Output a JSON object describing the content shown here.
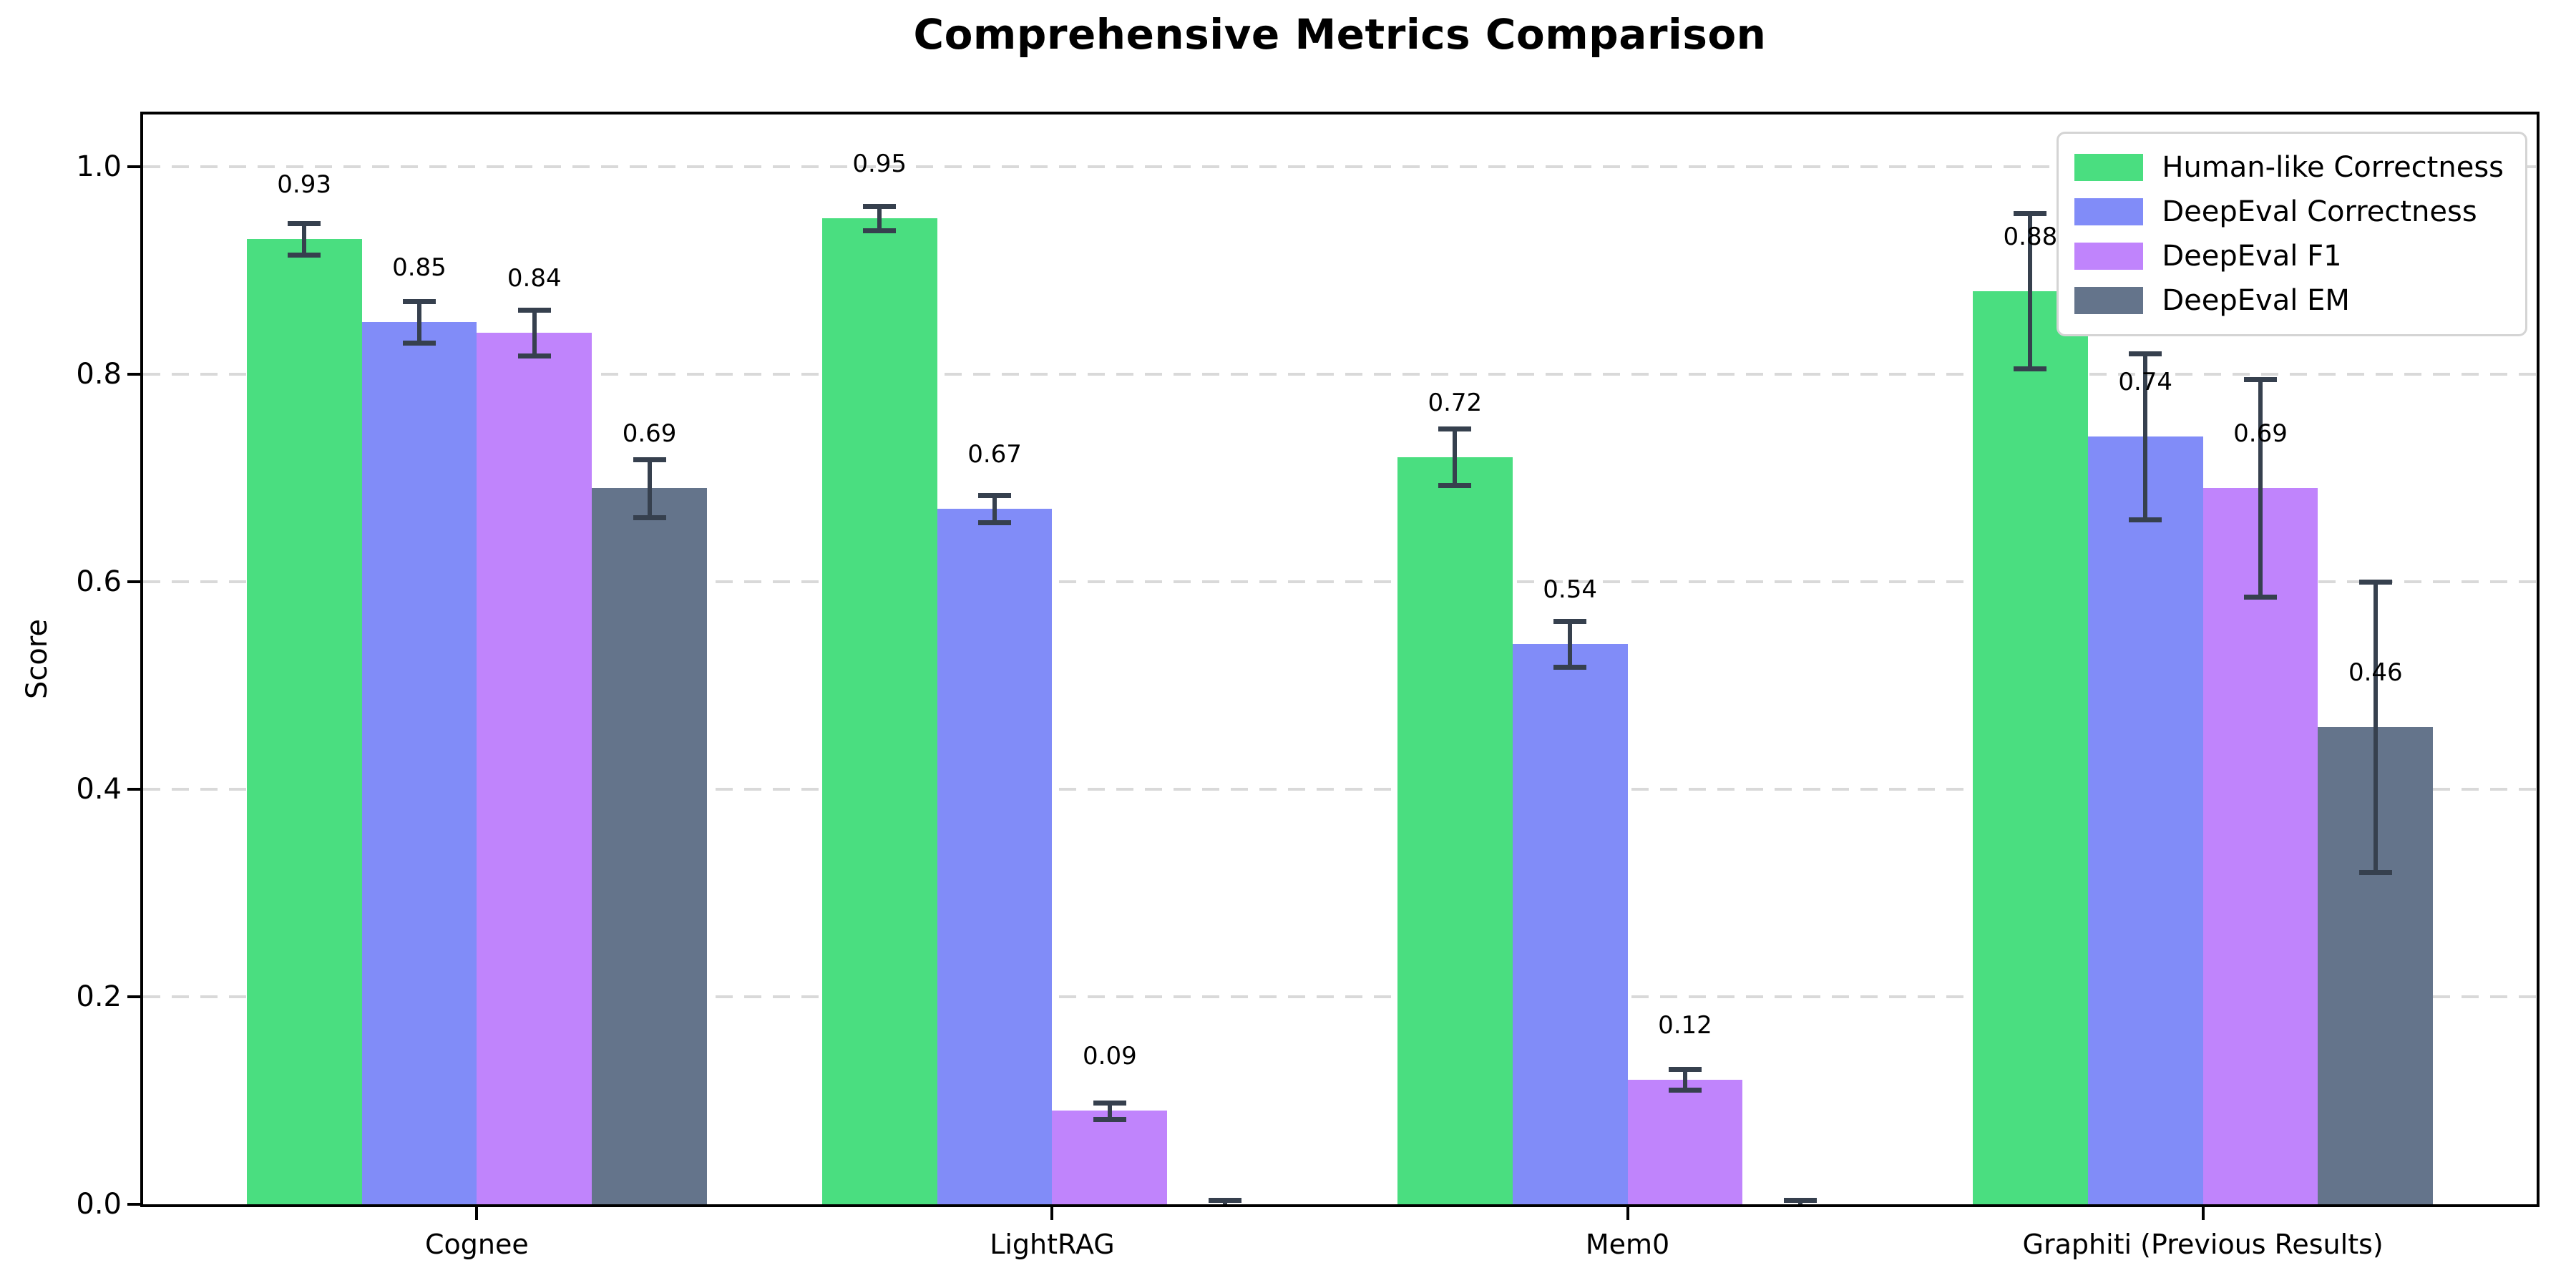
{
  "chart_data": {
    "type": "bar",
    "title": "Comprehensive Metrics Comparison",
    "ylabel": "Score",
    "xlabel": "",
    "categories": [
      "Cognee",
      "LightRAG",
      "Mem0",
      "Graphiti (Previous Results)"
    ],
    "series": [
      {
        "name": "Human-like Correctness",
        "color": "#4ade80",
        "values": [
          0.93,
          0.95,
          0.72,
          0.88
        ],
        "errors": [
          0.015,
          0.012,
          0.027,
          0.075
        ],
        "labels": [
          "0.93",
          "0.95",
          "0.72",
          "0.88"
        ]
      },
      {
        "name": "DeepEval Correctness",
        "color": "#818cf8",
        "values": [
          0.85,
          0.67,
          0.54,
          0.74
        ],
        "errors": [
          0.02,
          0.013,
          0.022,
          0.08
        ],
        "labels": [
          "0.85",
          "0.67",
          "0.54",
          "0.74"
        ]
      },
      {
        "name": "DeepEval F1",
        "color": "#c084fc",
        "values": [
          0.84,
          0.09,
          0.12,
          0.69
        ],
        "errors": [
          0.022,
          0.008,
          0.01,
          0.105
        ],
        "labels": [
          "0.84",
          "0.09",
          "0.12",
          "0.69"
        ]
      },
      {
        "name": "DeepEval EM",
        "color": "#64748b",
        "values": [
          0.69,
          0.0,
          0.0,
          0.46
        ],
        "errors": [
          0.028,
          0.004,
          0.004,
          0.14
        ],
        "labels": [
          "0.69",
          "",
          "",
          "0.46"
        ]
      }
    ],
    "yticks": [
      "0.0",
      "0.2",
      "0.4",
      "0.6",
      "0.8",
      "1.0"
    ],
    "ylim": [
      0,
      1.05
    ],
    "grid": "horizontal dashed",
    "legend_position": "upper right",
    "error_bar_color": "#36404e",
    "axis_color": "#000000",
    "background_color": "#ffffff"
  }
}
